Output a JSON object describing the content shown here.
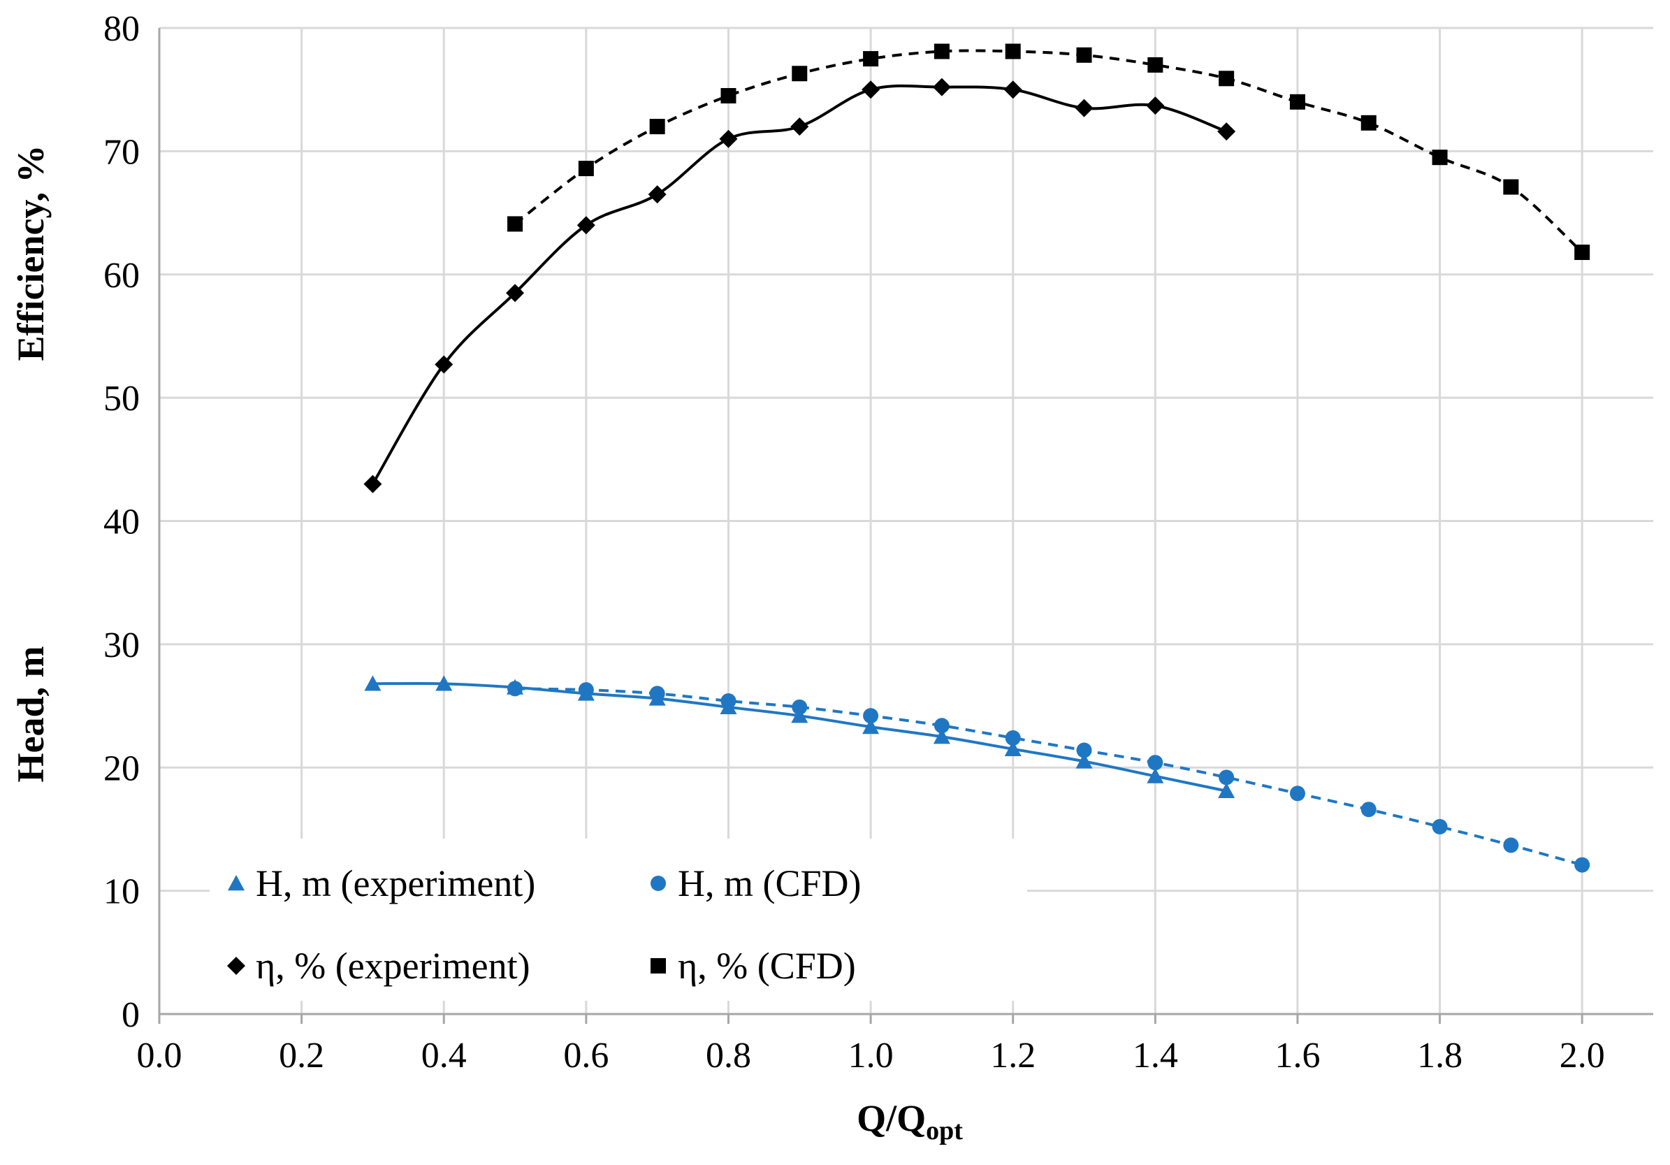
{
  "chart_data": {
    "type": "line",
    "xlabel_main": "Q/Q",
    "xlabel_sub": "opt",
    "ylabel_top": "Efficiency, %",
    "ylabel_bottom": "Head, m",
    "xlim": [
      0.0,
      2.1
    ],
    "ylim": [
      0,
      80
    ],
    "x_ticks": [
      "0.0",
      "0.2",
      "0.4",
      "0.6",
      "0.8",
      "1.0",
      "1.2",
      "1.4",
      "1.6",
      "1.8",
      "2.0"
    ],
    "y_ticks": [
      "0",
      "10",
      "20",
      "30",
      "40",
      "50",
      "60",
      "70",
      "80"
    ],
    "grid": true,
    "legend_position": "bottom-left",
    "series": [
      {
        "name": "H, m (experiment)",
        "marker": "triangle",
        "line": "solid",
        "color": "#1f77c4",
        "x": [
          0.3,
          0.4,
          0.5,
          0.6,
          0.7,
          0.8,
          0.9,
          1.0,
          1.1,
          1.2,
          1.3,
          1.4,
          1.5
        ],
        "values": [
          26.8,
          26.8,
          26.5,
          26.0,
          25.6,
          24.9,
          24.2,
          23.3,
          22.5,
          21.5,
          20.5,
          19.3,
          18.1
        ]
      },
      {
        "name": "H, m (CFD)",
        "marker": "circle",
        "line": "dashed",
        "color": "#1f77c4",
        "x": [
          0.5,
          0.6,
          0.7,
          0.8,
          0.9,
          1.0,
          1.1,
          1.2,
          1.3,
          1.4,
          1.5,
          1.6,
          1.7,
          1.8,
          1.9,
          2.0
        ],
        "values": [
          26.4,
          26.3,
          26.0,
          25.4,
          24.9,
          24.2,
          23.4,
          22.4,
          21.4,
          20.4,
          19.2,
          17.9,
          16.6,
          15.2,
          13.7,
          12.1
        ]
      },
      {
        "name": "η, % (experiment)",
        "marker": "diamond",
        "line": "solid",
        "color": "#000000",
        "x": [
          0.3,
          0.4,
          0.5,
          0.6,
          0.7,
          0.8,
          0.9,
          1.0,
          1.1,
          1.2,
          1.3,
          1.4,
          1.5
        ],
        "values": [
          43.0,
          52.7,
          58.5,
          64.0,
          66.5,
          71.0,
          72.0,
          75.0,
          75.2,
          75.0,
          73.5,
          73.7,
          71.6
        ]
      },
      {
        "name": "η, % (CFD)",
        "marker": "square",
        "line": "dashed",
        "color": "#000000",
        "x": [
          0.5,
          0.6,
          0.7,
          0.8,
          0.9,
          1.0,
          1.1,
          1.2,
          1.3,
          1.4,
          1.5,
          1.6,
          1.7,
          1.8,
          1.9,
          2.0
        ],
        "values": [
          64.1,
          68.6,
          72.0,
          74.5,
          76.3,
          77.5,
          78.1,
          78.1,
          77.8,
          77.0,
          75.9,
          74.0,
          72.3,
          69.5,
          67.1,
          61.8
        ]
      }
    ]
  }
}
